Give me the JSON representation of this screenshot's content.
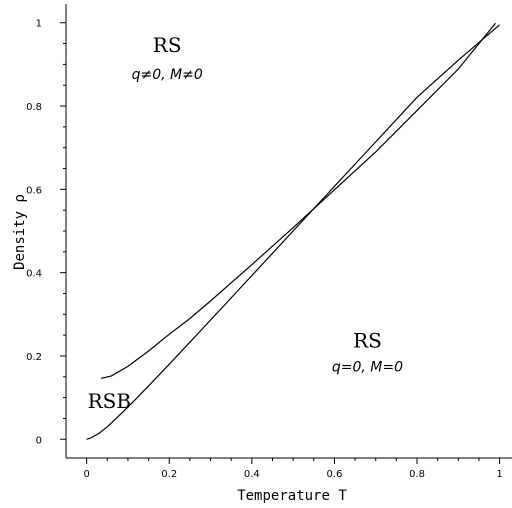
{
  "chart_data": {
    "type": "line",
    "xlabel": "Temperature T",
    "ylabel": "Density ρ",
    "xlim": [
      -0.05,
      1.03
    ],
    "ylim": [
      -0.045,
      1.045
    ],
    "xticks": [
      {
        "value": 0,
        "label": "0"
      },
      {
        "value": 0.2,
        "label": "0.2"
      },
      {
        "value": 0.4,
        "label": "0.4"
      },
      {
        "value": 0.6,
        "label": "0.6"
      },
      {
        "value": 0.8,
        "label": "0.8"
      },
      {
        "value": 1,
        "label": "1"
      }
    ],
    "yticks": [
      {
        "value": 0,
        "label": "0"
      },
      {
        "value": 0.2,
        "label": "0.2"
      },
      {
        "value": 0.4,
        "label": "0.4"
      },
      {
        "value": 0.6,
        "label": "0.6"
      },
      {
        "value": 0.8,
        "label": "0.8"
      },
      {
        "value": 1,
        "label": "1"
      }
    ],
    "grid": false,
    "series": [
      {
        "x": [
          0.035,
          0.06,
          0.1,
          0.15,
          0.2,
          0.25,
          0.3,
          0.4,
          0.5,
          0.6,
          0.7,
          0.8,
          0.9,
          0.99
        ],
        "y": [
          0.146,
          0.152,
          0.175,
          0.212,
          0.252,
          0.29,
          0.332,
          0.419,
          0.508,
          0.599,
          0.69,
          0.789,
          0.889,
          0.999
        ]
      },
      {
        "x": [
          0,
          0.01,
          0.03,
          0.05,
          0.08,
          0.1,
          0.15,
          0.2,
          0.3,
          0.4,
          0.5,
          0.6,
          0.7,
          0.8,
          0.9,
          1.0
        ],
        "y": [
          0.0,
          0.003,
          0.014,
          0.03,
          0.058,
          0.077,
          0.128,
          0.18,
          0.286,
          0.393,
          0.5,
          0.607,
          0.714,
          0.821,
          0.91,
          0.995
        ]
      }
    ],
    "annotations": [
      {
        "id": "rs-top",
        "text": "RS",
        "sub": "q≠0,  M≠0",
        "x": 0.195,
        "y": 0.93,
        "suby": 0.865
      },
      {
        "id": "rs-bottom",
        "text": "RS",
        "sub": "q=0,  M=0",
        "x": 0.68,
        "y": 0.22,
        "suby": 0.163
      },
      {
        "id": "rsb",
        "text": "RSB",
        "x": 0.055,
        "y": 0.075
      }
    ]
  }
}
